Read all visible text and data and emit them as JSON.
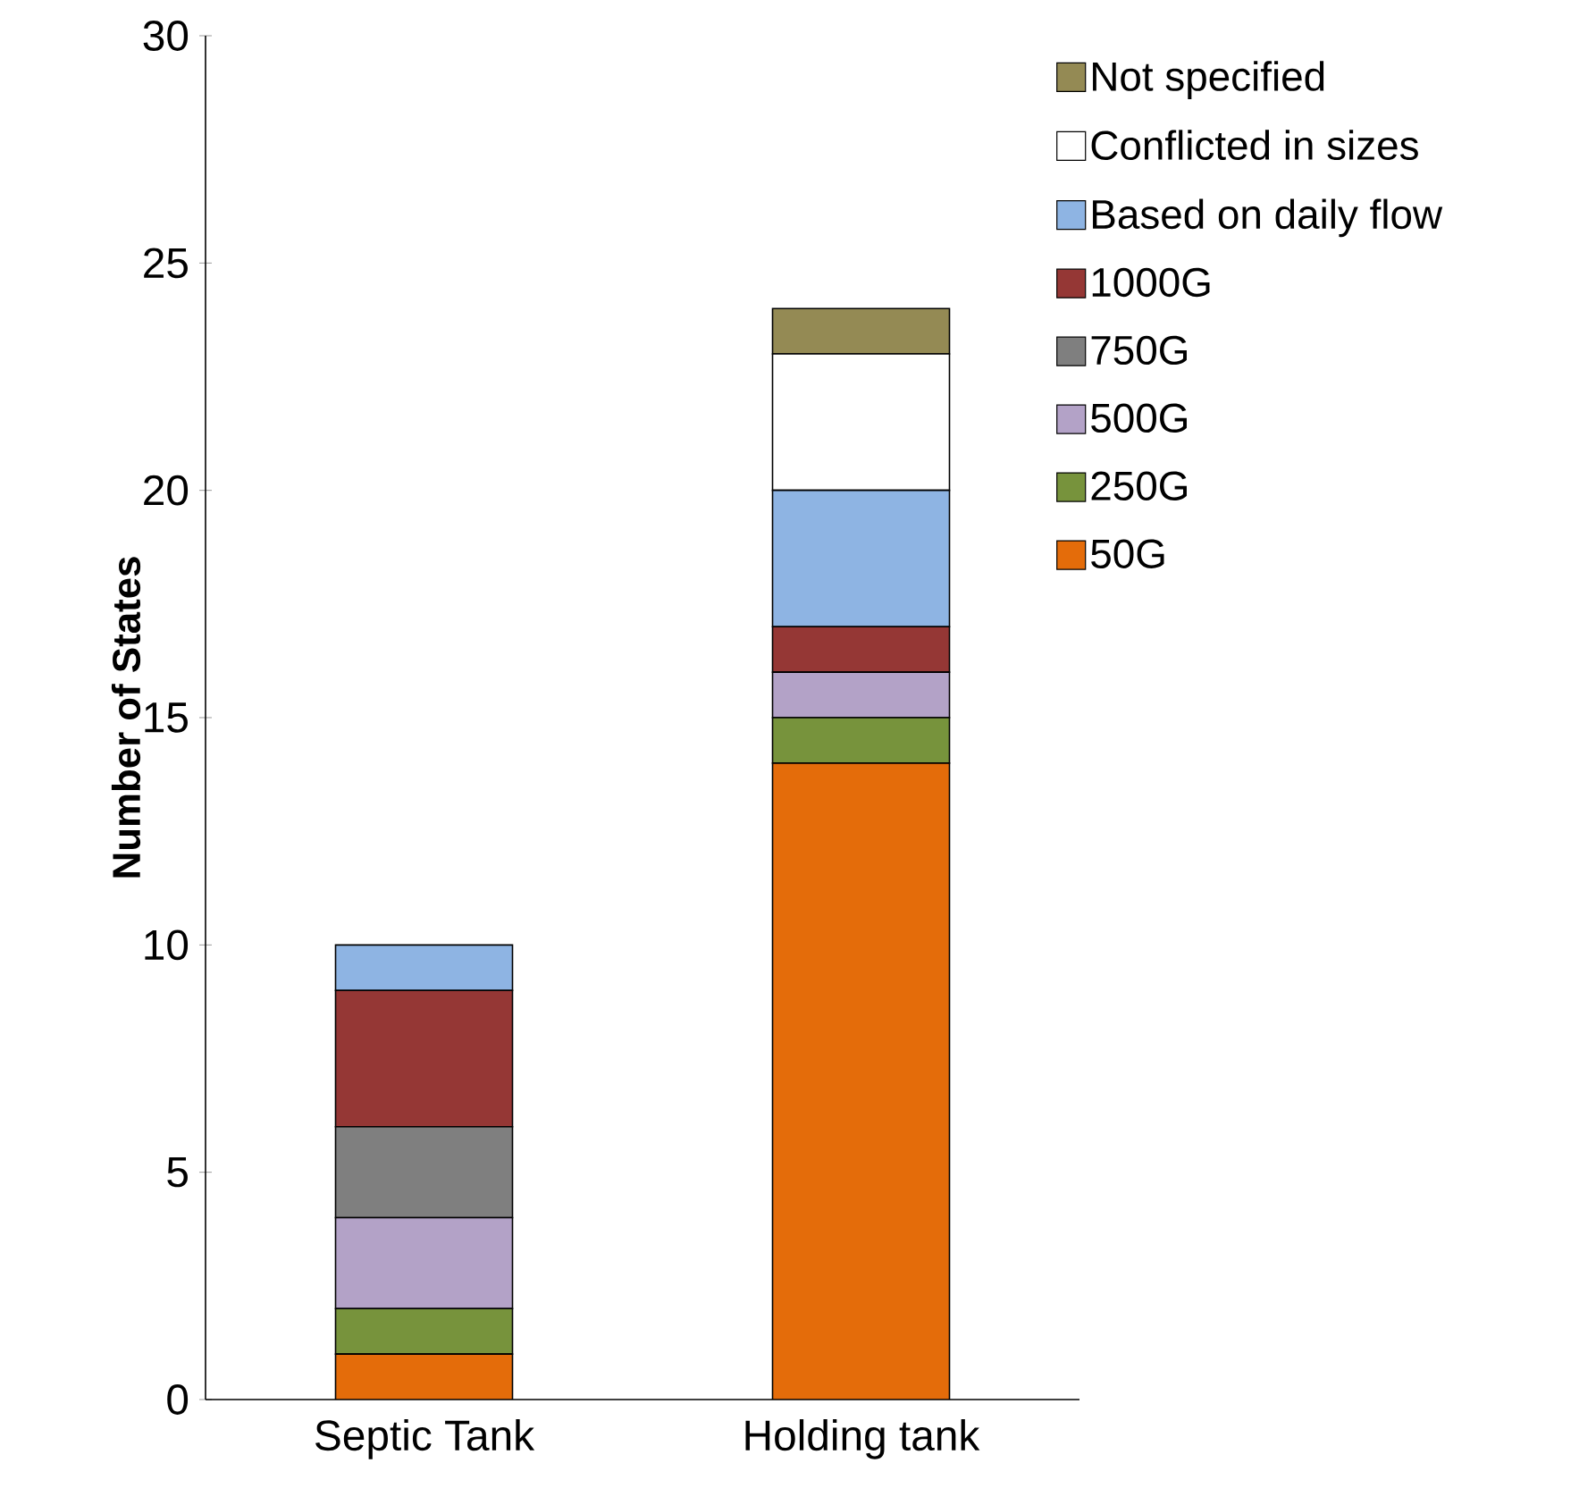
{
  "chart_data": {
    "type": "bar",
    "stacked": true,
    "ylabel": "Number of States",
    "categories": [
      "Septic Tank",
      "Holding tank"
    ],
    "series": [
      {
        "name": "50G",
        "color": "#e46c0a",
        "values": [
          1,
          14
        ]
      },
      {
        "name": "250G",
        "color": "#77933c",
        "values": [
          1,
          1
        ]
      },
      {
        "name": "500G",
        "color": "#b3a2c7",
        "values": [
          2,
          1
        ]
      },
      {
        "name": "750G",
        "color": "#7f7f7f",
        "values": [
          2,
          0
        ]
      },
      {
        "name": "1000G",
        "color": "#953735",
        "values": [
          3,
          1
        ]
      },
      {
        "name": "Based on daily flow",
        "color": "#8eb4e3",
        "values": [
          1,
          3
        ]
      },
      {
        "name": "Conflicted in sizes",
        "color": "#ffffff",
        "values": [
          0,
          3
        ]
      },
      {
        "name": "Not specified",
        "color": "#948a54",
        "values": [
          0,
          1
        ]
      }
    ],
    "ylim": [
      0,
      30
    ],
    "yticks": [
      0,
      5,
      10,
      15,
      20,
      25,
      30
    ],
    "grid": false,
    "legend": "right"
  }
}
